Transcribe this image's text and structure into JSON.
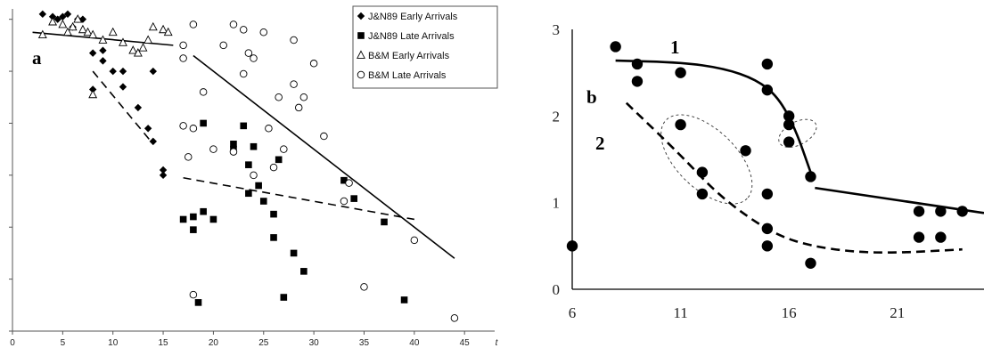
{
  "chart_data": [
    {
      "type": "scatter",
      "panel_label": "a",
      "xlim": [
        0,
        48
      ],
      "ylim": [
        0,
        6.2
      ],
      "x_ticks": [
        "0",
        "5",
        "10",
        "15",
        "20",
        "25",
        "30",
        "35",
        "40",
        "45"
      ],
      "x_end_label": "t",
      "legend_position": "top-right",
      "series": [
        {
          "name": "J&N89 Early Arrivals",
          "marker": "diamond-filled",
          "points": [
            [
              3,
              6.1
            ],
            [
              4,
              6.05
            ],
            [
              4.5,
              6.0
            ],
            [
              5,
              6.05
            ],
            [
              5.5,
              6.1
            ],
            [
              6,
              5.85
            ],
            [
              6.5,
              6.0
            ],
            [
              7,
              6.0
            ],
            [
              8,
              5.35
            ],
            [
              8,
              4.65
            ],
            [
              9,
              5.4
            ],
            [
              9,
              5.2
            ],
            [
              10,
              5.0
            ],
            [
              11,
              5.0
            ],
            [
              11,
              4.7
            ],
            [
              12.5,
              4.3
            ],
            [
              13.5,
              3.9
            ],
            [
              14,
              5.0
            ],
            [
              14,
              3.65
            ],
            [
              15,
              3.1
            ],
            [
              15,
              3.0
            ]
          ]
        },
        {
          "name": "J&N89 Late Arrivals",
          "marker": "square-filled",
          "points": [
            [
              17,
              2.15
            ],
            [
              18,
              2.2
            ],
            [
              18,
              1.95
            ],
            [
              18.5,
              0.55
            ],
            [
              19,
              2.3
            ],
            [
              19,
              4.0
            ],
            [
              20,
              2.15
            ],
            [
              22,
              3.6
            ],
            [
              22,
              3.5
            ],
            [
              23,
              3.95
            ],
            [
              23.5,
              3.2
            ],
            [
              23.5,
              2.65
            ],
            [
              24,
              3.55
            ],
            [
              24.5,
              2.8
            ],
            [
              25,
              2.5
            ],
            [
              26,
              1.8
            ],
            [
              26,
              2.25
            ],
            [
              26.5,
              3.3
            ],
            [
              27,
              0.65
            ],
            [
              28,
              1.5
            ],
            [
              29,
              1.15
            ],
            [
              33,
              2.9
            ],
            [
              34,
              2.55
            ],
            [
              37,
              2.1
            ],
            [
              39,
              0.6
            ]
          ]
        },
        {
          "name": "B&M Early Arrivals",
          "marker": "triangle-open",
          "points": [
            [
              3,
              5.7
            ],
            [
              4,
              5.95
            ],
            [
              5,
              5.9
            ],
            [
              5.5,
              5.75
            ],
            [
              6,
              5.85
            ],
            [
              6.5,
              6.0
            ],
            [
              7,
              5.8
            ],
            [
              7.5,
              5.75
            ],
            [
              8,
              4.55
            ],
            [
              8,
              5.7
            ],
            [
              9,
              5.6
            ],
            [
              10,
              5.75
            ],
            [
              11,
              5.55
            ],
            [
              12,
              5.4
            ],
            [
              12.5,
              5.35
            ],
            [
              13,
              5.45
            ],
            [
              13.5,
              5.6
            ],
            [
              14,
              5.85
            ],
            [
              15,
              5.8
            ],
            [
              15.5,
              5.75
            ]
          ]
        },
        {
          "name": "B&M Late Arrivals",
          "marker": "circle-open",
          "points": [
            [
              17,
              5.25
            ],
            [
              17,
              5.5
            ],
            [
              17,
              3.95
            ],
            [
              17.5,
              3.35
            ],
            [
              18,
              3.9
            ],
            [
              18,
              5.9
            ],
            [
              18,
              0.7
            ],
            [
              19,
              4.6
            ],
            [
              20,
              3.5
            ],
            [
              21,
              5.5
            ],
            [
              22,
              5.9
            ],
            [
              22,
              3.45
            ],
            [
              23,
              5.8
            ],
            [
              23,
              4.95
            ],
            [
              23.5,
              5.35
            ],
            [
              24,
              5.25
            ],
            [
              24,
              3.0
            ],
            [
              25,
              5.75
            ],
            [
              25.5,
              3.9
            ],
            [
              26,
              3.15
            ],
            [
              26.5,
              4.5
            ],
            [
              27,
              3.5
            ],
            [
              28,
              5.6
            ],
            [
              28,
              4.75
            ],
            [
              28.5,
              4.3
            ],
            [
              29,
              4.5
            ],
            [
              30,
              5.15
            ],
            [
              31,
              3.75
            ],
            [
              33,
              2.5
            ],
            [
              33.5,
              2.85
            ],
            [
              35,
              0.85
            ],
            [
              40,
              1.75
            ],
            [
              44,
              0.25
            ]
          ]
        }
      ],
      "trend_lines": [
        {
          "style": "solid",
          "points": [
            [
              2,
              5.75
            ],
            [
              16,
              5.5
            ]
          ]
        },
        {
          "style": "dashed",
          "points": [
            [
              8,
              5.0
            ],
            [
              14,
              3.6
            ]
          ]
        },
        {
          "style": "solid",
          "points": [
            [
              18,
              5.3
            ],
            [
              44,
              1.4
            ]
          ]
        },
        {
          "style": "dashed",
          "points": [
            [
              17,
              2.95
            ],
            [
              40,
              2.15
            ]
          ]
        }
      ]
    },
    {
      "type": "scatter",
      "panel_label": "b",
      "xlim": [
        6,
        25
      ],
      "ylim": [
        0,
        3
      ],
      "x_ticks": [
        6,
        11,
        16,
        21
      ],
      "y_ticks": [
        0,
        1,
        2,
        3
      ],
      "curve_labels": [
        "1",
        "2"
      ],
      "points": [
        [
          6,
          0.5
        ],
        [
          8,
          2.8
        ],
        [
          9,
          2.6
        ],
        [
          9,
          2.4
        ],
        [
          11,
          2.5
        ],
        [
          11,
          1.9
        ],
        [
          12,
          1.35
        ],
        [
          12,
          1.1
        ],
        [
          14,
          1.6
        ],
        [
          15,
          2.6
        ],
        [
          15,
          2.3
        ],
        [
          15,
          1.1
        ],
        [
          15,
          0.7
        ],
        [
          15,
          0.5
        ],
        [
          16,
          2.0
        ],
        [
          16,
          1.9
        ],
        [
          16,
          1.7
        ],
        [
          17,
          1.3
        ],
        [
          17,
          0.3
        ],
        [
          22,
          0.9
        ],
        [
          22,
          0.6
        ],
        [
          23,
          0.9
        ],
        [
          23,
          0.6
        ],
        [
          24,
          0.9
        ]
      ],
      "curves": [
        {
          "name": "1",
          "style": "solid",
          "points": [
            [
              8,
              2.64
            ],
            [
              11,
              2.62
            ],
            [
              13,
              2.55
            ],
            [
              14.5,
              2.42
            ],
            [
              15.5,
              2.22
            ],
            [
              16.3,
              1.85
            ],
            [
              17,
              1.35
            ]
          ]
        },
        {
          "name": "1",
          "style": "solid",
          "points": [
            [
              17.2,
              1.17
            ],
            [
              25,
              0.88
            ]
          ]
        },
        {
          "name": "2",
          "style": "dashed",
          "points": [
            [
              8.5,
              2.15
            ],
            [
              11,
              1.55
            ],
            [
              12.5,
              1.15
            ],
            [
              14,
              0.85
            ],
            [
              15.5,
              0.62
            ],
            [
              17,
              0.5
            ],
            [
              19,
              0.43
            ],
            [
              21,
              0.42
            ],
            [
              24,
              0.46
            ]
          ]
        }
      ],
      "ellipses": [
        {
          "cx": 12.2,
          "cy": 1.5,
          "rx": 4.2,
          "ry": 0.55,
          "rotate_deg": 44
        },
        {
          "cx": 16.4,
          "cy": 1.8,
          "rx": 0.85,
          "ry": 0.38,
          "rotate_deg": 62
        }
      ]
    }
  ]
}
